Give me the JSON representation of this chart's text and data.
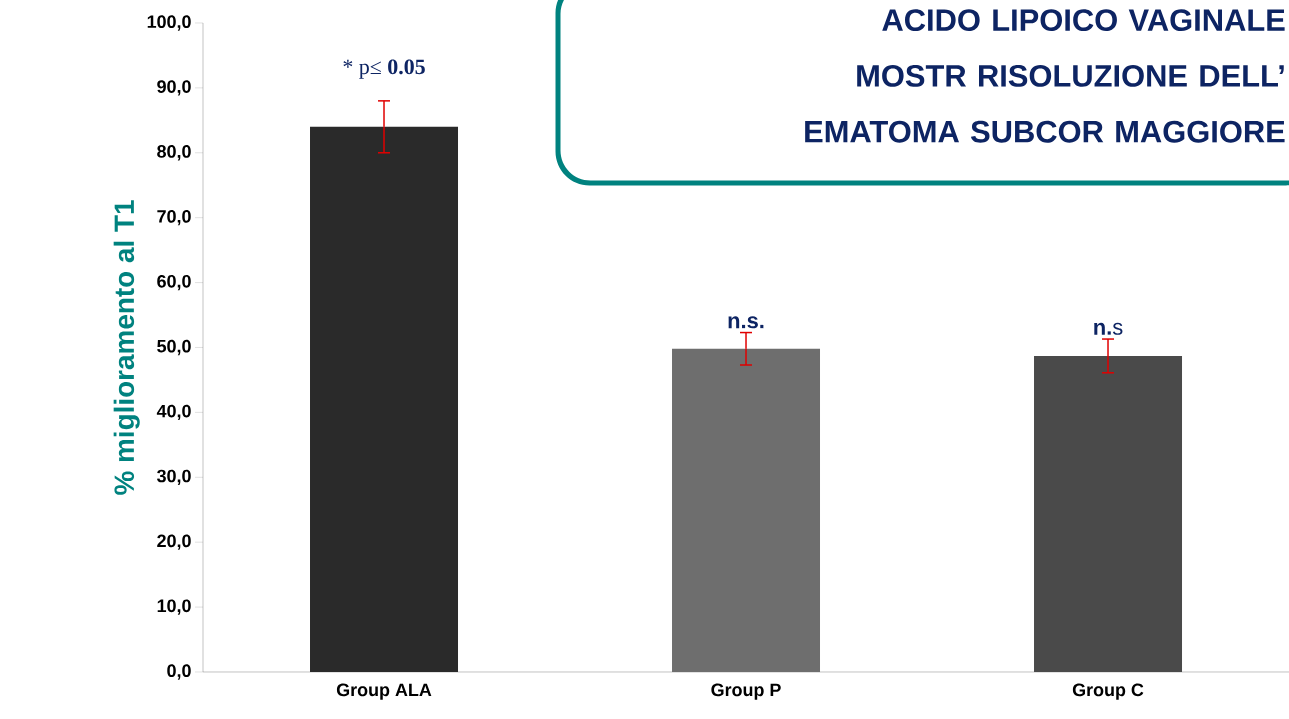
{
  "chart_data": {
    "type": "bar",
    "title": "ACIDO LIPOICO VAGINALE MOSTR RISOLUZIONE DELL’ EMATOMA SUBCOR MAGGIORE",
    "ylabel": "%  miglioramento al T1",
    "categories": [
      "Group ALA",
      "Group P",
      "Group C"
    ],
    "values": [
      84.0,
      49.8,
      48.7
    ],
    "errors": [
      4.0,
      2.5,
      2.6
    ],
    "colors": [
      "#2a2a2a",
      "#6e6e6e",
      "#4a4a4a"
    ],
    "ylim": [
      0,
      100
    ],
    "yticks": [
      {
        "value": 0,
        "label": "0,0"
      },
      {
        "value": 10,
        "label": "10,0"
      },
      {
        "value": 20,
        "label": "20,0"
      },
      {
        "value": 30,
        "label": "30,0"
      },
      {
        "value": 40,
        "label": "40,0"
      },
      {
        "value": 50,
        "label": "50,0"
      },
      {
        "value": 60,
        "label": "60,0"
      },
      {
        "value": 70,
        "label": "70,0"
      },
      {
        "value": 80,
        "label": "80,0"
      },
      {
        "value": 90,
        "label": "90,0"
      },
      {
        "value": 100,
        "label": "100,0"
      }
    ],
    "annotations": [
      "* p≤ **0.05**",
      "**n.s.**",
      "**n.**s"
    ]
  }
}
